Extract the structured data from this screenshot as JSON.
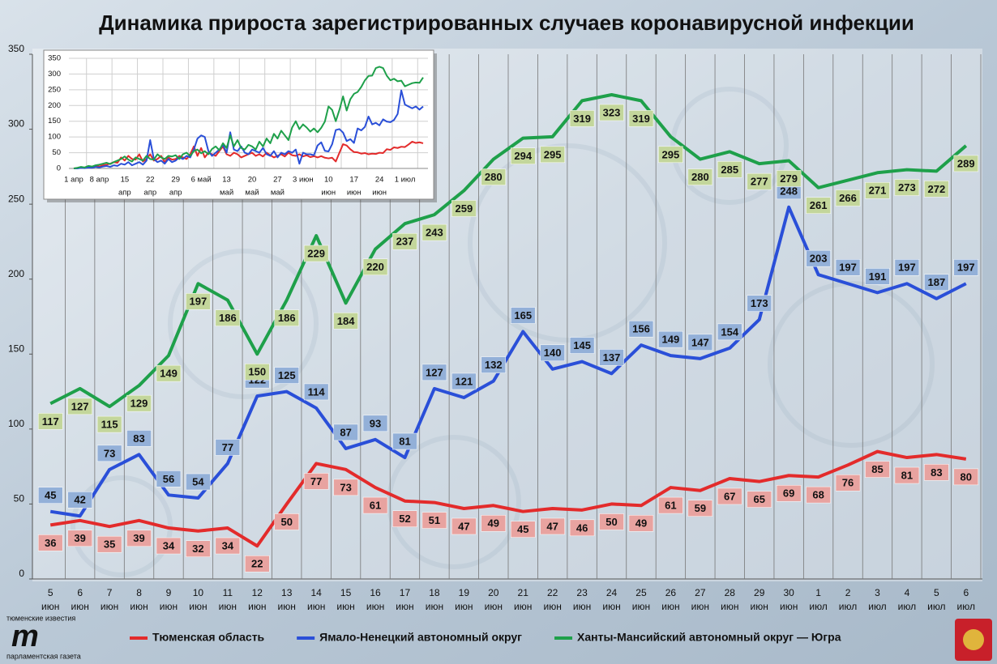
{
  "chart_data": [
    {
      "type": "line",
      "title": "Динамика прироста зарегистрированных случаев коронавирусной инфекции",
      "categories": [
        [
          "5",
          "июн"
        ],
        [
          "6",
          "июн"
        ],
        [
          "7",
          "июн"
        ],
        [
          "8",
          "июн"
        ],
        [
          "9",
          "июн"
        ],
        [
          "10",
          "июн"
        ],
        [
          "11",
          "июн"
        ],
        [
          "12",
          "июн"
        ],
        [
          "13",
          "июн"
        ],
        [
          "14",
          "июн"
        ],
        [
          "15",
          "июн"
        ],
        [
          "16",
          "июн"
        ],
        [
          "17",
          "июн"
        ],
        [
          "18",
          "июн"
        ],
        [
          "19",
          "июн"
        ],
        [
          "20",
          "июн"
        ],
        [
          "21",
          "июн"
        ],
        [
          "22",
          "июн"
        ],
        [
          "23",
          "июн"
        ],
        [
          "24",
          "июн"
        ],
        [
          "25",
          "июн"
        ],
        [
          "26",
          "июн"
        ],
        [
          "27",
          "июн"
        ],
        [
          "28",
          "июн"
        ],
        [
          "29",
          "июн"
        ],
        [
          "30",
          "июн"
        ],
        [
          "1",
          "июл"
        ],
        [
          "2",
          "июл"
        ],
        [
          "3",
          "июл"
        ],
        [
          "4",
          "июл"
        ],
        [
          "5",
          "июл"
        ],
        [
          "6",
          "июл"
        ]
      ],
      "series": [
        {
          "name": "Тюменская область",
          "color": "#e32b2b",
          "label_color": "#e8a3a0",
          "values": [
            36,
            39,
            35,
            39,
            34,
            32,
            34,
            22,
            50,
            77,
            73,
            61,
            52,
            51,
            47,
            49,
            45,
            47,
            46,
            50,
            49,
            61,
            59,
            67,
            65,
            69,
            68,
            76,
            85,
            81,
            83,
            80
          ]
        },
        {
          "name": "Ямало-Ненецкий автономный округ",
          "color": "#2a4fd8",
          "label_color": "#93b0d8",
          "values": [
            45,
            42,
            73,
            83,
            56,
            54,
            77,
            122,
            125,
            114,
            87,
            93,
            81,
            127,
            121,
            132,
            165,
            140,
            145,
            137,
            156,
            149,
            147,
            154,
            173,
            248,
            203,
            197,
            191,
            197,
            187,
            197
          ]
        },
        {
          "name": "Ханты-Мансийский автономный округ — Югра",
          "color": "#1ea04a",
          "label_color": "#c3d69b",
          "values": [
            117,
            127,
            115,
            129,
            149,
            197,
            186,
            150,
            186,
            229,
            184,
            220,
            237,
            243,
            259,
            280,
            294,
            295,
            319,
            323,
            319,
            295,
            280,
            285,
            277,
            279,
            261,
            266,
            271,
            273,
            272,
            289
          ]
        }
      ],
      "ylim": [
        0,
        350
      ],
      "yticks": [
        0,
        50,
        100,
        150,
        200,
        250,
        300,
        350
      ],
      "grid": "x",
      "legend": "bottom",
      "data_labels": true
    },
    {
      "type": "line",
      "categories": [
        [
          "1 апр"
        ],
        null,
        null,
        null,
        null,
        null,
        null,
        [
          "8 апр"
        ],
        null,
        null,
        null,
        null,
        null,
        null,
        [
          "15",
          "апр"
        ],
        null,
        null,
        null,
        null,
        null,
        null,
        [
          "22",
          "апр"
        ],
        null,
        null,
        null,
        null,
        null,
        null,
        [
          "29",
          "апр"
        ],
        null,
        null,
        null,
        null,
        null,
        null,
        [
          "6 май"
        ],
        null,
        null,
        null,
        null,
        null,
        null,
        [
          "13",
          "май"
        ],
        null,
        null,
        null,
        null,
        null,
        null,
        [
          "20",
          "май"
        ],
        null,
        null,
        null,
        null,
        null,
        null,
        [
          "27",
          "май"
        ],
        null,
        null,
        null,
        null,
        null,
        null,
        [
          "3 июн"
        ],
        null,
        null,
        null,
        null,
        null,
        null,
        [
          "10",
          "июн"
        ],
        null,
        null,
        null,
        null,
        null,
        null,
        [
          "17",
          "июн"
        ],
        null,
        null,
        null,
        null,
        null,
        null,
        [
          "24",
          "июн"
        ],
        null,
        null,
        null,
        null,
        null,
        null,
        [
          "1 июл"
        ],
        null,
        null,
        null,
        null,
        null
      ],
      "series": [
        {
          "color": "#e32b2b",
          "values": [
            0,
            1,
            3,
            2,
            5,
            4,
            8,
            6,
            10,
            12,
            15,
            20,
            18,
            35,
            25,
            40,
            30,
            28,
            45,
            22,
            30,
            45,
            25,
            30,
            40,
            20,
            35,
            28,
            30,
            40,
            35,
            30,
            45,
            70,
            40,
            65,
            35,
            50,
            45,
            40,
            55,
            70,
            45,
            40,
            50,
            45,
            35,
            40,
            45,
            50,
            40,
            45,
            38,
            50,
            42,
            35,
            40,
            45,
            38,
            50,
            42,
            40,
            45,
            38,
            42,
            36,
            39,
            35,
            39,
            34,
            32,
            34,
            22,
            50,
            77,
            73,
            61,
            52,
            51,
            47,
            49,
            45,
            47,
            46,
            50,
            49,
            61,
            59,
            67,
            65,
            69,
            68,
            76,
            85,
            81,
            83,
            80
          ]
        },
        {
          "color": "#2a4fd8",
          "values": [
            0,
            0,
            2,
            1,
            3,
            2,
            5,
            3,
            6,
            8,
            5,
            10,
            8,
            15,
            12,
            20,
            10,
            15,
            20,
            12,
            25,
            90,
            30,
            20,
            25,
            15,
            30,
            20,
            25,
            35,
            30,
            40,
            35,
            60,
            95,
            105,
            100,
            55,
            40,
            50,
            60,
            75,
            50,
            115,
            60,
            55,
            70,
            50,
            45,
            60,
            55,
            50,
            65,
            45,
            40,
            55,
            35,
            50,
            45,
            55,
            50,
            60,
            15,
            50,
            45,
            45,
            42,
            73,
            83,
            56,
            54,
            77,
            122,
            125,
            114,
            87,
            93,
            81,
            127,
            121,
            132,
            165,
            140,
            145,
            137,
            156,
            149,
            147,
            154,
            173,
            248,
            203,
            197,
            191,
            197,
            187,
            197
          ]
        },
        {
          "color": "#1ea04a",
          "values": [
            0,
            2,
            5,
            3,
            8,
            6,
            10,
            12,
            15,
            18,
            14,
            20,
            25,
            30,
            38,
            28,
            22,
            35,
            30,
            25,
            40,
            30,
            28,
            45,
            35,
            30,
            40,
            38,
            42,
            30,
            45,
            50,
            40,
            55,
            60,
            48,
            55,
            45,
            62,
            70,
            58,
            80,
            65,
            105,
            70,
            90,
            65,
            60,
            75,
            70,
            60,
            85,
            70,
            95,
            80,
            110,
            95,
            120,
            105,
            90,
            130,
            150,
            125,
            140,
            130,
            117,
            127,
            115,
            129,
            149,
            197,
            186,
            150,
            186,
            229,
            184,
            220,
            237,
            243,
            259,
            280,
            294,
            295,
            319,
            323,
            319,
            295,
            280,
            285,
            277,
            279,
            261,
            266,
            271,
            273,
            272,
            289
          ]
        }
      ],
      "ylim": [
        0,
        350
      ],
      "yticks": [
        0,
        50,
        100,
        150,
        200,
        250,
        300,
        350
      ],
      "grid": true
    }
  ],
  "logo": {
    "top": "тюменские известия",
    "bottom": "парламентская газета"
  }
}
